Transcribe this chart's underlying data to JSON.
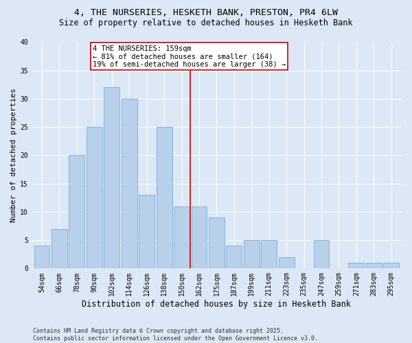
{
  "title": "4, THE NURSERIES, HESKETH BANK, PRESTON, PR4 6LW",
  "subtitle": "Size of property relative to detached houses in Hesketh Bank",
  "xlabel": "Distribution of detached houses by size in Hesketh Bank",
  "ylabel": "Number of detached properties",
  "bar_labels": [
    "54sqm",
    "66sqm",
    "78sqm",
    "90sqm",
    "102sqm",
    "114sqm",
    "126sqm",
    "138sqm",
    "150sqm",
    "162sqm",
    "175sqm",
    "187sqm",
    "199sqm",
    "211sqm",
    "223sqm",
    "235sqm",
    "247sqm",
    "259sqm",
    "271sqm",
    "283sqm",
    "295sqm"
  ],
  "bar_heights": [
    4,
    7,
    20,
    25,
    32,
    30,
    13,
    25,
    11,
    11,
    9,
    4,
    5,
    5,
    2,
    0,
    5,
    0,
    1,
    1,
    1
  ],
  "bar_color": "#b8d0ea",
  "bar_edge_color": "#7aadd4",
  "background_color": "#dce8f5",
  "grid_color": "#ffffff",
  "vline_x_index": 8.5,
  "vline_color": "#cc0000",
  "annotation_text": "4 THE NURSERIES: 159sqm\n← 81% of detached houses are smaller (164)\n19% of semi-detached houses are larger (38) →",
  "annotation_box_color": "#ffffff",
  "annotation_box_edge": "#cc0000",
  "ylim": [
    0,
    40
  ],
  "yticks": [
    0,
    5,
    10,
    15,
    20,
    25,
    30,
    35,
    40
  ],
  "footnote": "Contains HM Land Registry data © Crown copyright and database right 2025.\nContains public sector information licensed under the Open Government Licence v3.0.",
  "title_fontsize": 9.5,
  "subtitle_fontsize": 8.5,
  "ylabel_fontsize": 8,
  "xlabel_fontsize": 8.5,
  "tick_fontsize": 7,
  "annotation_fontsize": 7.5,
  "footnote_fontsize": 6
}
